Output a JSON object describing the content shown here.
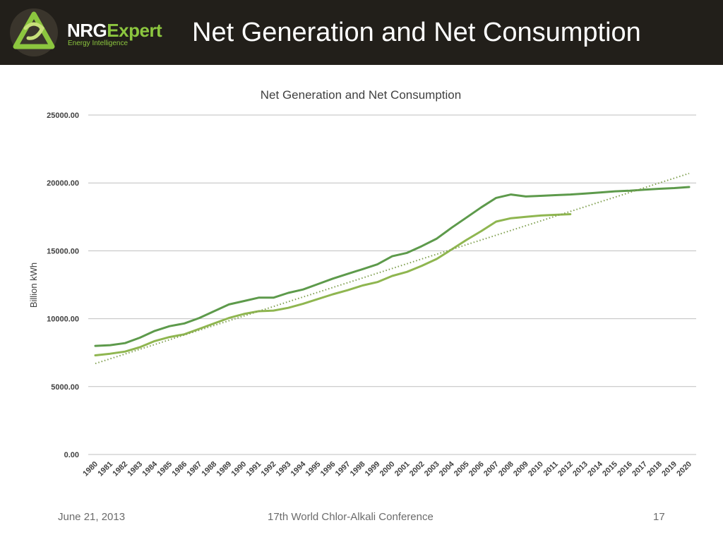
{
  "header": {
    "brand_primary": "NRG",
    "brand_secondary": "Expert",
    "tagline": "Energy Intelligence",
    "slide_title": "Net Generation and Net Consumption",
    "logo_icon": "triangle-swirl-logo-icon",
    "bg_color": "#221f1a",
    "accent_color": "#8cc63f"
  },
  "chart_data": {
    "type": "line",
    "title": "Net Generation and Net Consumption",
    "xlabel": "",
    "ylabel": "Billion kWh",
    "ylim": [
      0,
      25000
    ],
    "yticks": [
      "0.00",
      "5000.00",
      "10000.00",
      "15000.00",
      "20000.00",
      "25000.00"
    ],
    "grid": true,
    "categories": [
      "1980",
      "1981",
      "1982",
      "1983",
      "1984",
      "1985",
      "1986",
      "1987",
      "1988",
      "1989",
      "1990",
      "1991",
      "1992",
      "1993",
      "1994",
      "1995",
      "1996",
      "1997",
      "1998",
      "1999",
      "2000",
      "2001",
      "2002",
      "2003",
      "2004",
      "2005",
      "2006",
      "2007",
      "2008",
      "2009",
      "2010",
      "2011",
      "2012",
      "2013",
      "2014",
      "2015",
      "2016",
      "2017",
      "2018",
      "2019",
      "2020"
    ],
    "series": [
      {
        "color": "#5d9a4b",
        "style": "solid",
        "values": [
          8000,
          8050,
          8200,
          8600,
          9100,
          9450,
          9650,
          10050,
          10550,
          11050,
          11300,
          11550,
          11550,
          11900,
          12150,
          12550,
          12950,
          13300,
          13650,
          14000,
          14600,
          14850,
          15350,
          15900,
          16700,
          17450,
          18200,
          18900,
          19150,
          19000,
          19050,
          19100,
          19150,
          19220,
          19300,
          19380,
          19430,
          19500,
          19570,
          19620,
          19700
        ]
      },
      {
        "color": "#8fb650",
        "style": "solid",
        "values": [
          7300,
          7420,
          7580,
          7900,
          8350,
          8650,
          8850,
          9250,
          9650,
          10050,
          10350,
          10550,
          10600,
          10800,
          11100,
          11450,
          11800,
          12100,
          12450,
          12700,
          13150,
          13450,
          13900,
          14400,
          15100,
          15800,
          16450,
          17150,
          17400,
          17500,
          17600,
          17650,
          17700,
          null,
          null,
          null,
          null,
          null,
          null,
          null,
          null
        ]
      },
      {
        "color": "#7f9f4f",
        "style": "dotted",
        "values": [
          6700,
          7050,
          7400,
          7750,
          8100,
          8450,
          8800,
          9150,
          9500,
          9850,
          10200,
          10550,
          10900,
          11250,
          11600,
          11950,
          12300,
          12650,
          13000,
          13350,
          13700,
          14050,
          14400,
          14750,
          15100,
          15450,
          15800,
          16150,
          16500,
          16850,
          17200,
          17550,
          17900,
          18250,
          18600,
          18950,
          19300,
          19650,
          20000,
          20350,
          20700
        ]
      }
    ]
  },
  "footer": {
    "date": "June 21, 2013",
    "event": "17th World Chlor-Alkali Conference",
    "page": "17"
  }
}
